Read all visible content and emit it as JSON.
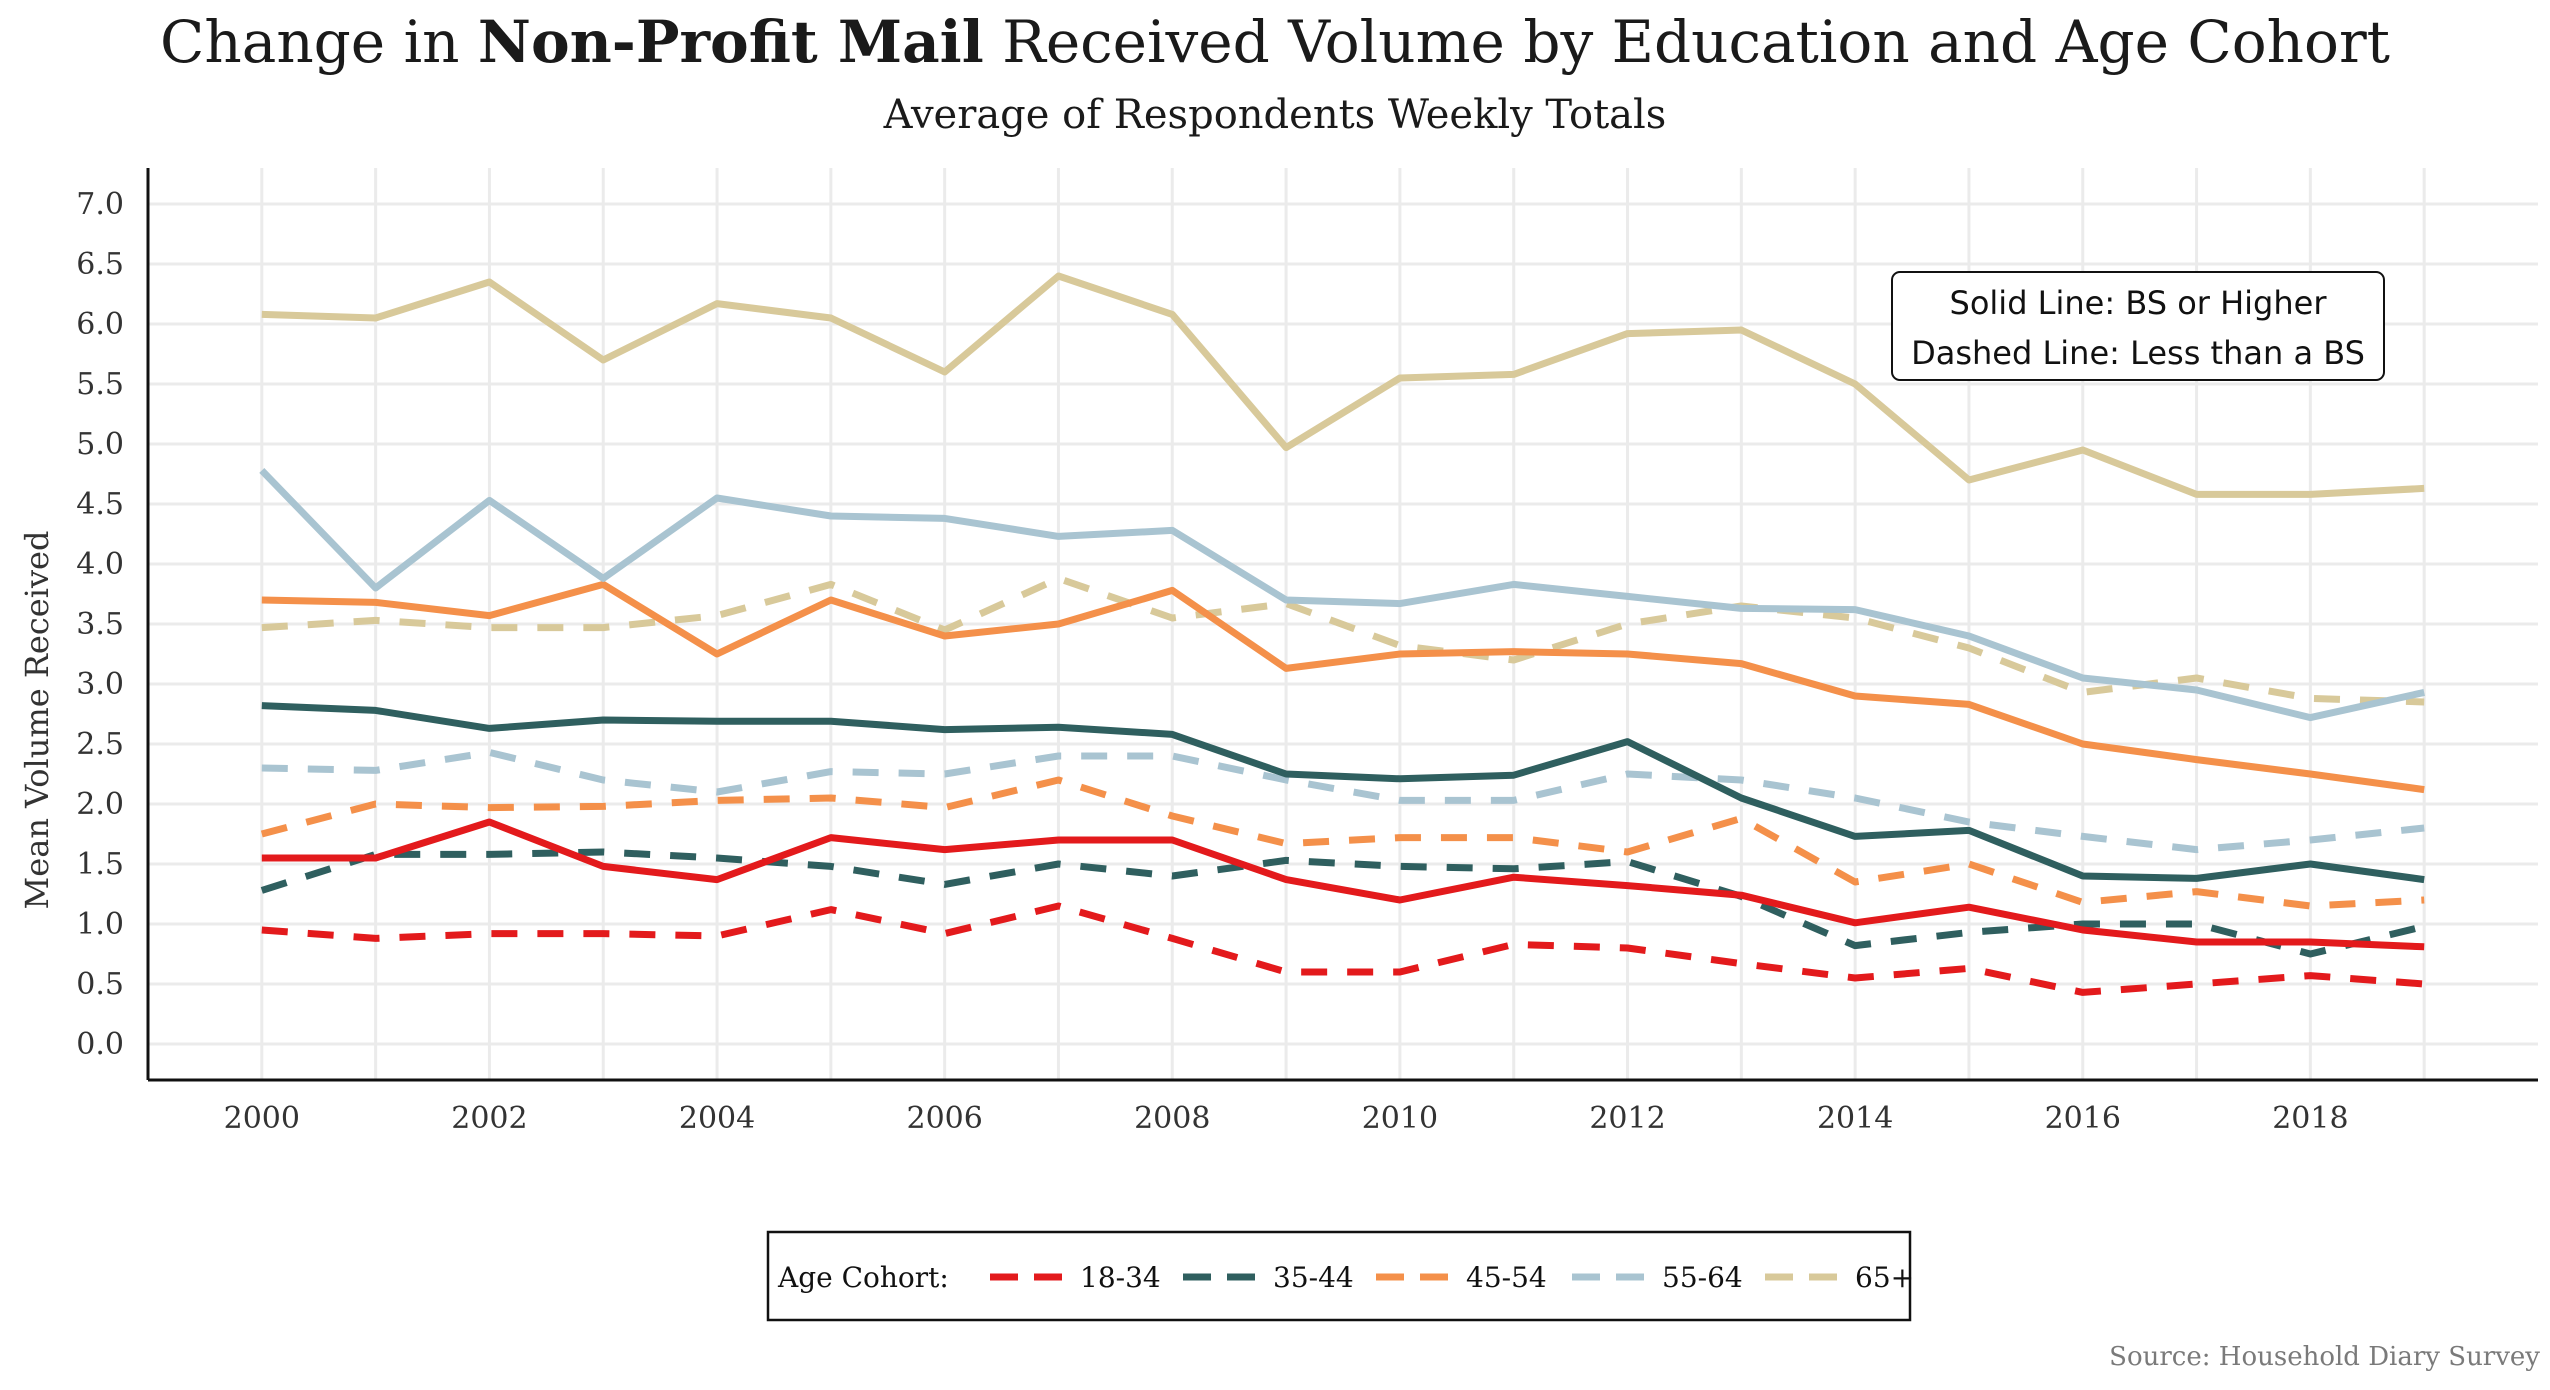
{
  "title_prefix": "Change in ",
  "title_bold": "Non-Profit Mail",
  "title_suffix": " Received Volume by Education and Age Cohort",
  "subtitle": "Average of Respondents Weekly Totals",
  "source": "Source: Household Diary Survey",
  "chart_data": {
    "type": "line",
    "title": "Change in Non-Profit Mail Received Volume by Education and Age Cohort",
    "subtitle": "Average of Respondents Weekly Totals",
    "xlabel": "",
    "ylabel": "Mean Volume Received",
    "xlim": [
      1999,
      2020
    ],
    "ylim": [
      -0.3,
      7.3
    ],
    "x": [
      2000,
      2001,
      2002,
      2003,
      2004,
      2005,
      2006,
      2007,
      2008,
      2009,
      2010,
      2011,
      2012,
      2013,
      2014,
      2015,
      2016,
      2017,
      2018,
      2019
    ],
    "x_ticks": [
      "2000",
      "2002",
      "2004",
      "2006",
      "2008",
      "2010",
      "2012",
      "2014",
      "2016",
      "2018"
    ],
    "x_tick_values": [
      2000,
      2002,
      2004,
      2006,
      2008,
      2010,
      2012,
      2014,
      2016,
      2018
    ],
    "y_ticks": [
      "0.0",
      "0.5",
      "1.0",
      "1.5",
      "2.0",
      "2.5",
      "3.0",
      "3.5",
      "4.0",
      "4.5",
      "5.0",
      "5.5",
      "6.0",
      "6.5",
      "7.0"
    ],
    "y_tick_values": [
      0,
      0.5,
      1,
      1.5,
      2,
      2.5,
      3,
      3.5,
      4,
      4.5,
      5,
      5.5,
      6,
      6.5,
      7
    ],
    "grid": true,
    "legend_position": "bottom",
    "legend_title": "Age Cohort:",
    "legend_items": [
      {
        "name": "18-34",
        "color": "#e31a1c"
      },
      {
        "name": "35-44",
        "color": "#2f5f5f"
      },
      {
        "name": "45-54",
        "color": "#f4904a"
      },
      {
        "name": "55-64",
        "color": "#a9c4d1"
      },
      {
        "name": "65+",
        "color": "#d8c99a"
      }
    ],
    "annotation_lines": [
      "Solid Line: BS or Higher",
      "Dashed Line: Less than a BS"
    ],
    "series": [
      {
        "cohort": "18-34",
        "education": "BS or Higher",
        "style": "solid",
        "color": "#e31a1c",
        "values": [
          1.55,
          1.55,
          1.85,
          1.48,
          1.37,
          1.72,
          1.62,
          1.7,
          1.7,
          1.37,
          1.2,
          1.39,
          1.32,
          1.24,
          1.01,
          1.14,
          0.95,
          0.85,
          0.85,
          0.81
        ]
      },
      {
        "cohort": "18-34",
        "education": "Less than a BS",
        "style": "dashed",
        "color": "#e31a1c",
        "values": [
          0.95,
          0.88,
          0.92,
          0.92,
          0.9,
          1.12,
          0.92,
          1.15,
          0.88,
          0.6,
          0.6,
          0.83,
          0.8,
          0.67,
          0.55,
          0.63,
          0.43,
          0.5,
          0.57,
          0.5
        ]
      },
      {
        "cohort": "35-44",
        "education": "BS or Higher",
        "style": "solid",
        "color": "#2f5f5f",
        "values": [
          2.82,
          2.78,
          2.63,
          2.7,
          2.69,
          2.69,
          2.62,
          2.64,
          2.58,
          2.25,
          2.21,
          2.24,
          2.52,
          2.05,
          1.73,
          1.78,
          1.4,
          1.38,
          1.5,
          1.37
        ]
      },
      {
        "cohort": "35-44",
        "education": "Less than a BS",
        "style": "dashed",
        "color": "#2f5f5f",
        "values": [
          1.28,
          1.58,
          1.58,
          1.6,
          1.55,
          1.48,
          1.33,
          1.5,
          1.4,
          1.53,
          1.48,
          1.46,
          1.52,
          1.23,
          0.82,
          0.93,
          1.0,
          1.0,
          0.75,
          0.98
        ]
      },
      {
        "cohort": "45-54",
        "education": "BS or Higher",
        "style": "solid",
        "color": "#f4904a",
        "values": [
          3.7,
          3.68,
          3.57,
          3.83,
          3.25,
          3.7,
          3.4,
          3.5,
          3.78,
          3.13,
          3.25,
          3.27,
          3.25,
          3.17,
          2.9,
          2.83,
          2.5,
          2.37,
          2.25,
          2.12
        ]
      },
      {
        "cohort": "45-54",
        "education": "Less than a BS",
        "style": "dashed",
        "color": "#f4904a",
        "values": [
          1.75,
          2.0,
          1.97,
          1.98,
          2.03,
          2.05,
          1.97,
          2.2,
          1.9,
          1.67,
          1.72,
          1.72,
          1.6,
          1.88,
          1.35,
          1.5,
          1.18,
          1.27,
          1.15,
          1.2
        ]
      },
      {
        "cohort": "55-64",
        "education": "BS or Higher",
        "style": "solid",
        "color": "#a9c4d1",
        "values": [
          4.78,
          3.8,
          4.53,
          3.88,
          4.55,
          4.4,
          4.38,
          4.23,
          4.28,
          3.7,
          3.67,
          3.83,
          3.73,
          3.63,
          3.62,
          3.4,
          3.05,
          2.95,
          2.72,
          2.93
        ]
      },
      {
        "cohort": "55-64",
        "education": "Less than a BS",
        "style": "dashed",
        "color": "#a9c4d1",
        "values": [
          2.3,
          2.28,
          2.43,
          2.2,
          2.1,
          2.27,
          2.25,
          2.4,
          2.4,
          2.2,
          2.03,
          2.03,
          2.25,
          2.2,
          2.05,
          1.85,
          1.73,
          1.62,
          1.7,
          1.8
        ]
      },
      {
        "cohort": "65+",
        "education": "BS or Higher",
        "style": "solid",
        "color": "#d8c99a",
        "values": [
          6.08,
          6.05,
          6.35,
          5.7,
          6.17,
          6.05,
          5.6,
          6.4,
          6.08,
          4.97,
          5.55,
          5.58,
          5.92,
          5.95,
          5.5,
          4.7,
          4.95,
          4.58,
          4.58,
          4.63
        ]
      },
      {
        "cohort": "65+",
        "education": "Less than a BS",
        "style": "dashed",
        "color": "#d8c99a",
        "values": [
          3.47,
          3.53,
          3.47,
          3.47,
          3.57,
          3.83,
          3.45,
          3.88,
          3.55,
          3.67,
          3.32,
          3.2,
          3.5,
          3.65,
          3.55,
          3.3,
          2.93,
          3.05,
          2.88,
          2.85
        ]
      }
    ]
  }
}
